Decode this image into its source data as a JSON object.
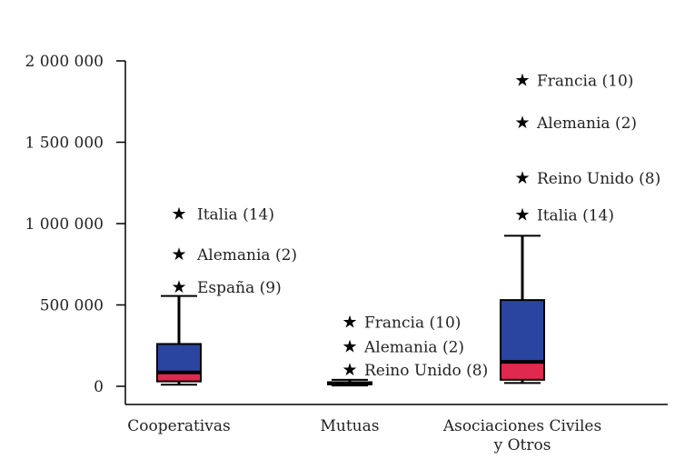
{
  "chart_data": {
    "type": "box",
    "title": "",
    "xlabel": "",
    "ylabel": "",
    "ylim": [
      0,
      2000000
    ],
    "yticks": [
      0,
      500000,
      1000000,
      1500000,
      2000000
    ],
    "ytick_labels": [
      "0",
      "500 000",
      "1 000 000",
      "1 500 000",
      "2 000 000"
    ],
    "colors": {
      "upper_box": "#2a45a0",
      "lower_box": "#e0294e",
      "median": "#000000",
      "axis": "#000000"
    },
    "groups": [
      {
        "category": "Cooperativas",
        "category_lines": [
          "Cooperativas"
        ],
        "whisker_low": 10000,
        "q1": 30000,
        "median": 85000,
        "q3": 260000,
        "whisker_high": 555000,
        "outliers": [
          {
            "label": "Italia (14)",
            "value": 1065000
          },
          {
            "label": "Alemania (2)",
            "value": 815000
          },
          {
            "label": "España (9)",
            "value": 615000
          }
        ]
      },
      {
        "category": "Mutuas",
        "category_lines": [
          "Mutuas"
        ],
        "whisker_low": 5000,
        "q1": 12000,
        "median": 18000,
        "q3": 25000,
        "whisker_high": 40000,
        "outliers": [
          {
            "label": "Francia (10)",
            "value": 400000
          },
          {
            "label": "Alemania (2)",
            "value": 250000
          },
          {
            "label": "Reino Unido (8)",
            "value": 105000
          }
        ]
      },
      {
        "category": "Asociaciones Civiles y Otros",
        "category_lines": [
          "Asociaciones Civiles",
          "y Otros"
        ],
        "whisker_low": 20000,
        "q1": 40000,
        "median": 150000,
        "q3": 530000,
        "whisker_high": 925000,
        "outliers": [
          {
            "label": "Francia (10)",
            "value": 1885000
          },
          {
            "label": "Alemania (2)",
            "value": 1625000
          },
          {
            "label": "Reino Unido (8)",
            "value": 1285000
          },
          {
            "label": "Italia (14)",
            "value": 1060000
          }
        ]
      }
    ]
  }
}
